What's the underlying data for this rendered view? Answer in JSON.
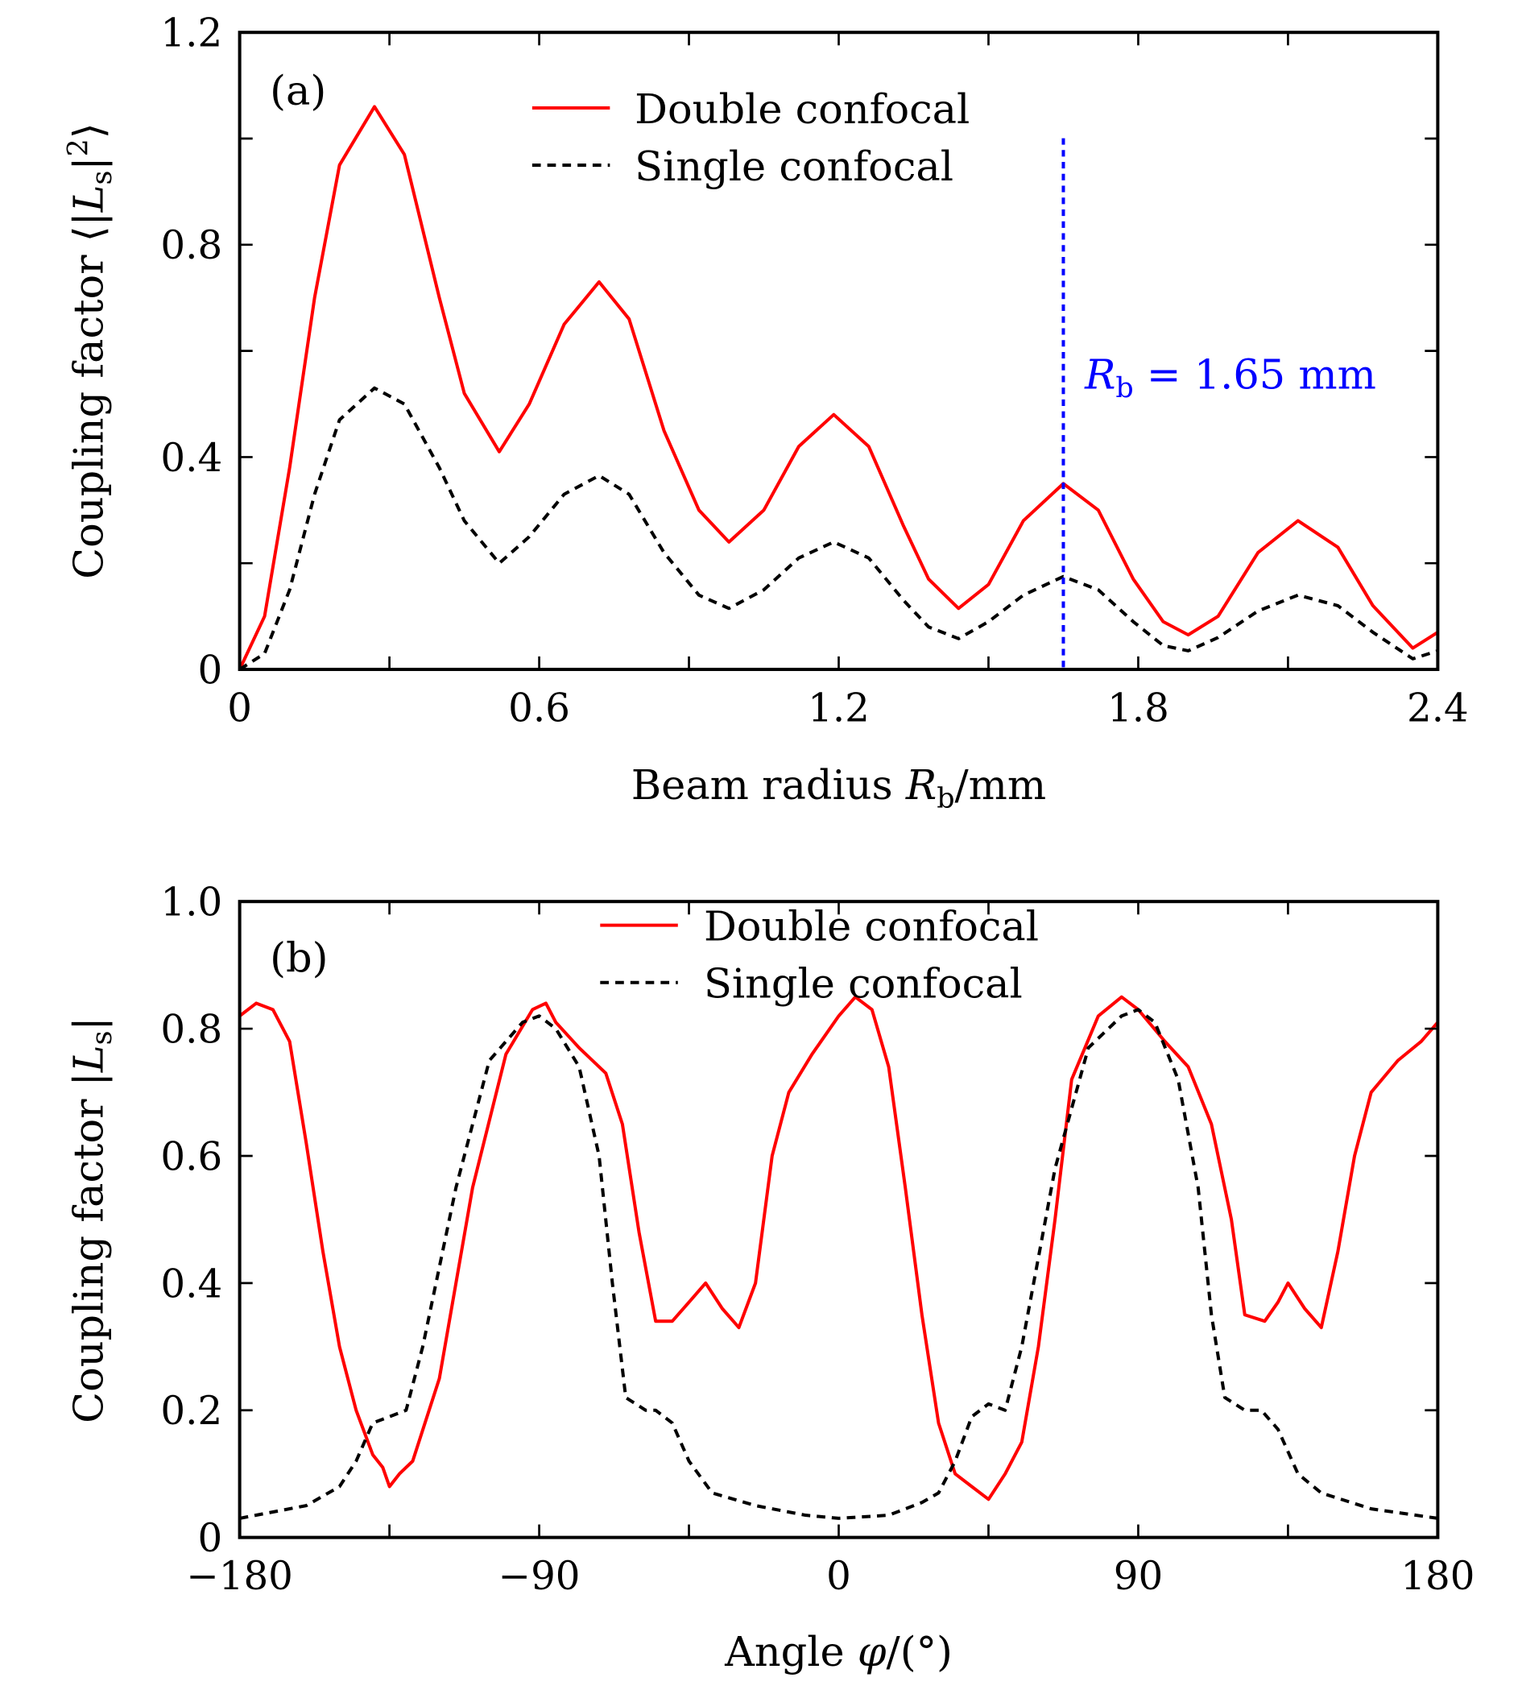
{
  "colors": {
    "double": "#ff0000",
    "single": "#000000",
    "marker": "#0000ff"
  },
  "chart_data": [
    {
      "type": "line",
      "panel_label": "(a)",
      "xlabel": {
        "pre": "Beam radius ",
        "var": "R",
        "sub": "b",
        "post": "/mm"
      },
      "ylabel": {
        "pre": "Coupling factor ⟨|",
        "var": "L",
        "sub": "s",
        "mid": "|",
        "sup": "2",
        "post": "⟩"
      },
      "xlim": [
        0,
        2.4
      ],
      "ylim": [
        0,
        1.2
      ],
      "xticks": [
        0,
        0.6,
        1.2,
        1.8,
        2.4
      ],
      "xtick_labels": [
        "0",
        "0.6",
        "1.2",
        "1.8",
        "2.4"
      ],
      "xminor": [
        0.3,
        0.9,
        1.5,
        2.1
      ],
      "yticks": [
        0,
        0.4,
        0.8,
        1.2
      ],
      "ytick_labels": [
        "0",
        "0.4",
        "0.8",
        "1.2"
      ],
      "yminor": [
        0.2,
        0.6,
        1.0
      ],
      "legend_position": "top-center",
      "annotation": {
        "x": 1.65,
        "var": "R",
        "sub": "b",
        "text": " = 1.65 mm"
      },
      "x": [
        0,
        0.05,
        0.1,
        0.15,
        0.2,
        0.27,
        0.33,
        0.4,
        0.45,
        0.52,
        0.58,
        0.65,
        0.72,
        0.78,
        0.85,
        0.92,
        0.98,
        1.05,
        1.12,
        1.19,
        1.26,
        1.33,
        1.38,
        1.44,
        1.5,
        1.57,
        1.65,
        1.72,
        1.79,
        1.85,
        1.9,
        1.96,
        2.04,
        2.12,
        2.2,
        2.27,
        2.35,
        2.4
      ],
      "series": [
        {
          "name": "Double confocal",
          "style": "solid",
          "values": [
            0,
            0.1,
            0.38,
            0.7,
            0.95,
            1.06,
            0.97,
            0.7,
            0.52,
            0.41,
            0.5,
            0.65,
            0.73,
            0.66,
            0.45,
            0.3,
            0.24,
            0.3,
            0.42,
            0.48,
            0.42,
            0.27,
            0.17,
            0.115,
            0.16,
            0.28,
            0.35,
            0.3,
            0.17,
            0.09,
            0.065,
            0.1,
            0.22,
            0.28,
            0.23,
            0.12,
            0.04,
            0.07
          ]
        },
        {
          "name": "Single confocal",
          "style": "dashed",
          "values": [
            0,
            0.03,
            0.15,
            0.33,
            0.47,
            0.53,
            0.5,
            0.38,
            0.28,
            0.2,
            0.25,
            0.33,
            0.365,
            0.33,
            0.22,
            0.14,
            0.115,
            0.15,
            0.21,
            0.24,
            0.21,
            0.13,
            0.08,
            0.058,
            0.09,
            0.14,
            0.175,
            0.15,
            0.09,
            0.045,
            0.035,
            0.06,
            0.11,
            0.14,
            0.12,
            0.07,
            0.02,
            0.035
          ]
        }
      ]
    },
    {
      "type": "line",
      "panel_label": "(b)",
      "xlabel": {
        "pre": "Angle ",
        "var": "φ",
        "post": "/(°)"
      },
      "ylabel": {
        "pre": "Coupling factor |",
        "var": "L",
        "sub": "s",
        "post": "|"
      },
      "xlim": [
        -180,
        180
      ],
      "ylim": [
        0,
        1.0
      ],
      "xticks": [
        -180,
        -90,
        0,
        90,
        180
      ],
      "xtick_labels": [
        "−180",
        "−90",
        "0",
        "90",
        "180"
      ],
      "xminor": [
        -135,
        -45,
        45,
        135
      ],
      "yticks": [
        0,
        0.2,
        0.4,
        0.6,
        0.8,
        1.0
      ],
      "ytick_labels": [
        "0",
        "0.2",
        "0.4",
        "0.6",
        "0.8",
        "1.0"
      ],
      "yminor": [],
      "legend_position": "top-center",
      "series": [
        {
          "name": "Double confocal",
          "style": "solid",
          "x": [
            -180,
            -175,
            -170,
            -165,
            -160,
            -155,
            -150,
            -145,
            -140,
            -137,
            -135,
            -132,
            -128,
            -120,
            -110,
            -100,
            -92,
            -88,
            -85,
            -78,
            -70,
            -65,
            -60,
            -55,
            -50,
            -45,
            -40,
            -35,
            -30,
            -25,
            -20,
            -15,
            -8,
            0,
            5,
            10,
            15,
            20,
            25,
            30,
            35,
            40,
            45,
            50,
            55,
            60,
            65,
            70,
            78,
            85,
            90,
            98,
            105,
            112,
            118,
            122,
            128,
            132,
            135,
            140,
            145,
            150,
            155,
            160,
            168,
            175,
            180
          ],
          "values": [
            0.82,
            0.84,
            0.83,
            0.78,
            0.62,
            0.45,
            0.3,
            0.2,
            0.13,
            0.11,
            0.08,
            0.1,
            0.12,
            0.25,
            0.55,
            0.76,
            0.83,
            0.84,
            0.81,
            0.77,
            0.73,
            0.65,
            0.48,
            0.34,
            0.34,
            0.37,
            0.4,
            0.36,
            0.33,
            0.4,
            0.6,
            0.7,
            0.76,
            0.82,
            0.85,
            0.83,
            0.74,
            0.55,
            0.35,
            0.18,
            0.1,
            0.08,
            0.06,
            0.1,
            0.15,
            0.3,
            0.5,
            0.72,
            0.82,
            0.85,
            0.83,
            0.78,
            0.74,
            0.65,
            0.5,
            0.35,
            0.34,
            0.37,
            0.4,
            0.36,
            0.33,
            0.45,
            0.6,
            0.7,
            0.75,
            0.78,
            0.81
          ]
        },
        {
          "name": "Single confocal",
          "style": "dashed",
          "x": [
            -180,
            -160,
            -150,
            -145,
            -140,
            -135,
            -130,
            -125,
            -115,
            -105,
            -95,
            -90,
            -85,
            -78,
            -72,
            -68,
            -64,
            -58,
            -55,
            -50,
            -45,
            -38,
            -25,
            -10,
            0,
            15,
            25,
            30,
            35,
            40,
            45,
            50,
            55,
            65,
            75,
            85,
            90,
            95,
            102,
            108,
            112,
            116,
            122,
            127,
            132,
            138,
            145,
            160,
            180
          ],
          "values": [
            0.03,
            0.05,
            0.08,
            0.12,
            0.18,
            0.19,
            0.2,
            0.3,
            0.55,
            0.75,
            0.81,
            0.82,
            0.8,
            0.74,
            0.6,
            0.4,
            0.22,
            0.2,
            0.2,
            0.18,
            0.12,
            0.07,
            0.05,
            0.035,
            0.03,
            0.035,
            0.055,
            0.07,
            0.12,
            0.19,
            0.21,
            0.2,
            0.3,
            0.58,
            0.77,
            0.82,
            0.83,
            0.81,
            0.72,
            0.55,
            0.35,
            0.22,
            0.2,
            0.2,
            0.17,
            0.1,
            0.07,
            0.045,
            0.03
          ]
        }
      ]
    }
  ]
}
